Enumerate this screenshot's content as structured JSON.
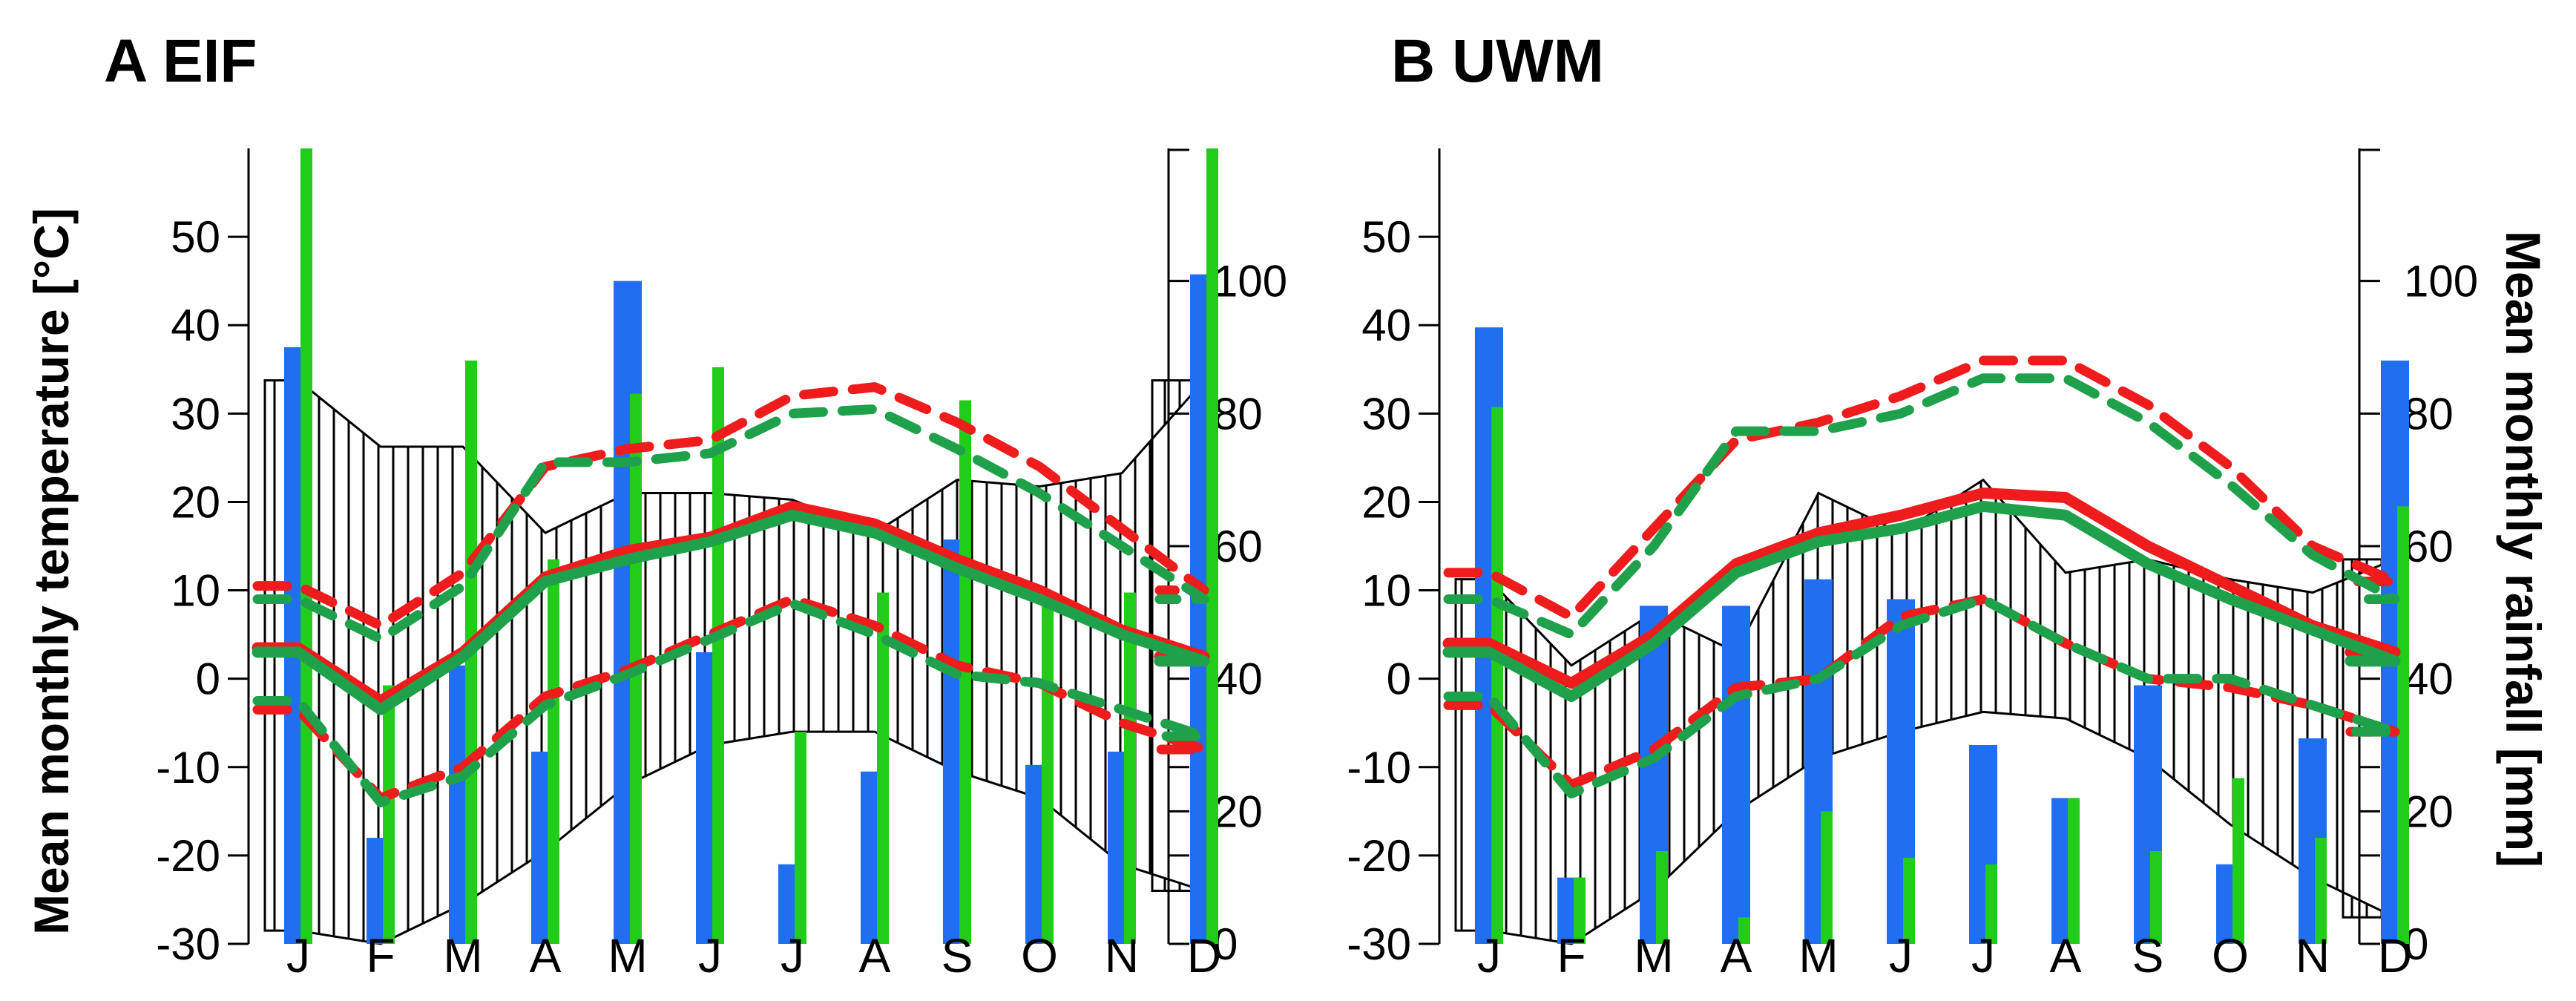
{
  "figure": {
    "left_ylabel": "Mean monthly temperature [°C]",
    "right_ylabel": "Mean monthly rainfall [mm]"
  },
  "colors": {
    "rain_observed": "#1f6ff0",
    "rain_simulated": "#22cc1a",
    "temp_observed": "#ee1c1c",
    "temp_simulated": "#1fa04a",
    "envelope": "#000000"
  },
  "chart_data": [
    {
      "type": "climate-diagram",
      "title": "A EIF",
      "categories": [
        "J",
        "F",
        "M",
        "A",
        "M",
        "J",
        "J",
        "A",
        "S",
        "O",
        "N",
        "D"
      ],
      "temp_axis": {
        "range": [
          -30,
          60
        ],
        "ticks": [
          50,
          40,
          30,
          20,
          10,
          0,
          -10,
          -20,
          -30
        ]
      },
      "rain_axis": {
        "range": [
          0,
          120
        ],
        "ticks": [
          100,
          80,
          60,
          40,
          20,
          0
        ]
      },
      "series": [
        {
          "name": "rainfall observed",
          "kind": "bar",
          "values": [
            90,
            16,
            42,
            29,
            100,
            44,
            12,
            26,
            61,
            27,
            29,
            101
          ]
        },
        {
          "name": "rainfall simulated",
          "kind": "bar",
          "values": [
            120,
            39,
            88,
            58,
            83,
            87,
            32,
            53,
            82,
            52,
            53,
            120
          ]
        },
        {
          "name": "envelope upper",
          "kind": "envelope",
          "values": [
            85,
            75,
            75,
            62,
            68,
            68,
            67,
            62,
            70,
            69,
            71,
            85
          ]
        },
        {
          "name": "envelope lower",
          "kind": "envelope",
          "values": [
            2,
            0,
            6,
            14,
            24,
            30,
            32,
            32,
            26,
            22,
            12,
            8
          ]
        },
        {
          "name": "temperature observed mean",
          "kind": "line",
          "values": [
            3.5,
            -2.5,
            3,
            11.5,
            14.5,
            16,
            19.5,
            17.5,
            13.5,
            10,
            5.5,
            2.5
          ]
        },
        {
          "name": "temperature simulated mean",
          "kind": "line",
          "values": [
            3,
            -3.5,
            2.5,
            11,
            13.5,
            15.5,
            18.5,
            16.5,
            12.5,
            9,
            5,
            2
          ]
        },
        {
          "name": "temperature observed max",
          "kind": "dashed",
          "values": [
            10.5,
            6,
            12,
            24,
            26,
            27,
            32,
            33,
            29,
            24,
            17,
            10
          ]
        },
        {
          "name": "temperature simulated max",
          "kind": "dashed",
          "values": [
            9,
            4.5,
            10.5,
            24.5,
            24.5,
            25.5,
            30,
            30.5,
            26,
            21,
            15,
            9
          ]
        },
        {
          "name": "temperature observed min",
          "kind": "dashed",
          "values": [
            -3.5,
            -13.5,
            -10,
            -2,
            1,
            5,
            9,
            6,
            1.5,
            -0.5,
            -5,
            -8
          ]
        },
        {
          "name": "temperature simulated min",
          "kind": "dashed",
          "values": [
            -2.5,
            -14,
            -11,
            -3,
            0.5,
            4.5,
            8.5,
            5,
            0.5,
            -0.5,
            -3.5,
            -6.5
          ]
        }
      ]
    },
    {
      "type": "climate-diagram",
      "title": "B UWM",
      "categories": [
        "J",
        "F",
        "M",
        "A",
        "M",
        "J",
        "J",
        "A",
        "S",
        "O",
        "N",
        "D"
      ],
      "temp_axis": {
        "range": [
          -30,
          60
        ],
        "ticks": [
          50,
          40,
          30,
          20,
          10,
          0,
          -10,
          -20,
          -30
        ]
      },
      "rain_axis": {
        "range": [
          0,
          120
        ],
        "ticks": [
          100,
          80,
          60,
          40,
          20,
          0
        ]
      },
      "series": [
        {
          "name": "rainfall observed",
          "kind": "bar",
          "values": [
            93,
            10,
            51,
            51,
            55,
            52,
            30,
            22,
            39,
            12,
            31,
            88
          ]
        },
        {
          "name": "rainfall simulated",
          "kind": "bar",
          "values": [
            81,
            10,
            14,
            4,
            20,
            13,
            12,
            22,
            14,
            25,
            16,
            66
          ]
        },
        {
          "name": "envelope upper",
          "kind": "envelope",
          "values": [
            55,
            42,
            50,
            44,
            68,
            62,
            70,
            56,
            58,
            55,
            53,
            58
          ]
        },
        {
          "name": "envelope lower",
          "kind": "envelope",
          "values": [
            2,
            0,
            8,
            20,
            28,
            32,
            35,
            34,
            28,
            18,
            10,
            4
          ]
        },
        {
          "name": "temperature observed mean",
          "kind": "line",
          "values": [
            4,
            -0.5,
            5,
            13,
            16.5,
            18.5,
            21,
            20.5,
            15,
            10.5,
            6,
            3
          ]
        },
        {
          "name": "temperature simulated mean",
          "kind": "line",
          "values": [
            3,
            -2,
            4,
            12,
            15.5,
            17,
            19.5,
            18.5,
            13,
            9,
            5.5,
            2
          ]
        },
        {
          "name": "temperature observed max",
          "kind": "dashed",
          "values": [
            12,
            7,
            17,
            27,
            29,
            32,
            36,
            36,
            31,
            24,
            15,
            11
          ]
        },
        {
          "name": "temperature simulated max",
          "kind": "dashed",
          "values": [
            9,
            5,
            15,
            28,
            28,
            30,
            34,
            34,
            29,
            22,
            14,
            9
          ]
        },
        {
          "name": "temperature observed min",
          "kind": "dashed",
          "values": [
            -3,
            -12,
            -8,
            -1,
            0,
            7,
            9,
            4,
            0,
            -1,
            -3,
            -6
          ]
        },
        {
          "name": "temperature simulated min",
          "kind": "dashed",
          "values": [
            -2,
            -13,
            -9,
            -2,
            0,
            6,
            9,
            4,
            0,
            0,
            -3,
            -6
          ]
        }
      ]
    }
  ]
}
